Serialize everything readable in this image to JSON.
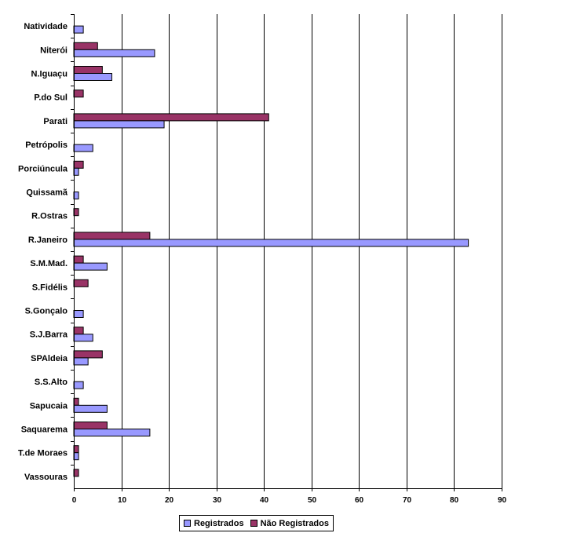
{
  "chart_data": {
    "type": "bar",
    "orientation": "horizontal",
    "categories": [
      "Natividade",
      "Niterói",
      "N.Iguaçu",
      "P.do Sul",
      "Parati",
      "Petrópolis",
      "Porciúncula",
      "Quissamã",
      "R.Ostras",
      "R.Janeiro",
      "S.M.Mad.",
      "S.Fidélis",
      "S.Gonçalo",
      "S.J.Barra",
      "SPAldeia",
      "S.S.Alto",
      "Sapucaia",
      "Saquarema",
      "T.de Moraes",
      "Vassouras"
    ],
    "series": [
      {
        "name": "Registrados",
        "color": "#9999ff",
        "values": [
          2,
          17,
          8,
          0,
          19,
          4,
          1,
          1,
          0,
          83,
          7,
          0,
          2,
          4,
          3,
          2,
          7,
          16,
          1,
          0
        ]
      },
      {
        "name": "Não Registrados",
        "color": "#993366",
        "values": [
          0,
          5,
          6,
          2,
          41,
          0,
          2,
          0,
          1,
          16,
          2,
          3,
          0,
          2,
          6,
          0,
          1,
          7,
          1,
          1
        ]
      }
    ],
    "xlim": [
      0,
      90
    ],
    "xticks": [
      0,
      10,
      20,
      30,
      40,
      50,
      60,
      70,
      80,
      90
    ],
    "grid": true,
    "legend_position": "bottom",
    "title": "",
    "xlabel": "",
    "ylabel": ""
  }
}
